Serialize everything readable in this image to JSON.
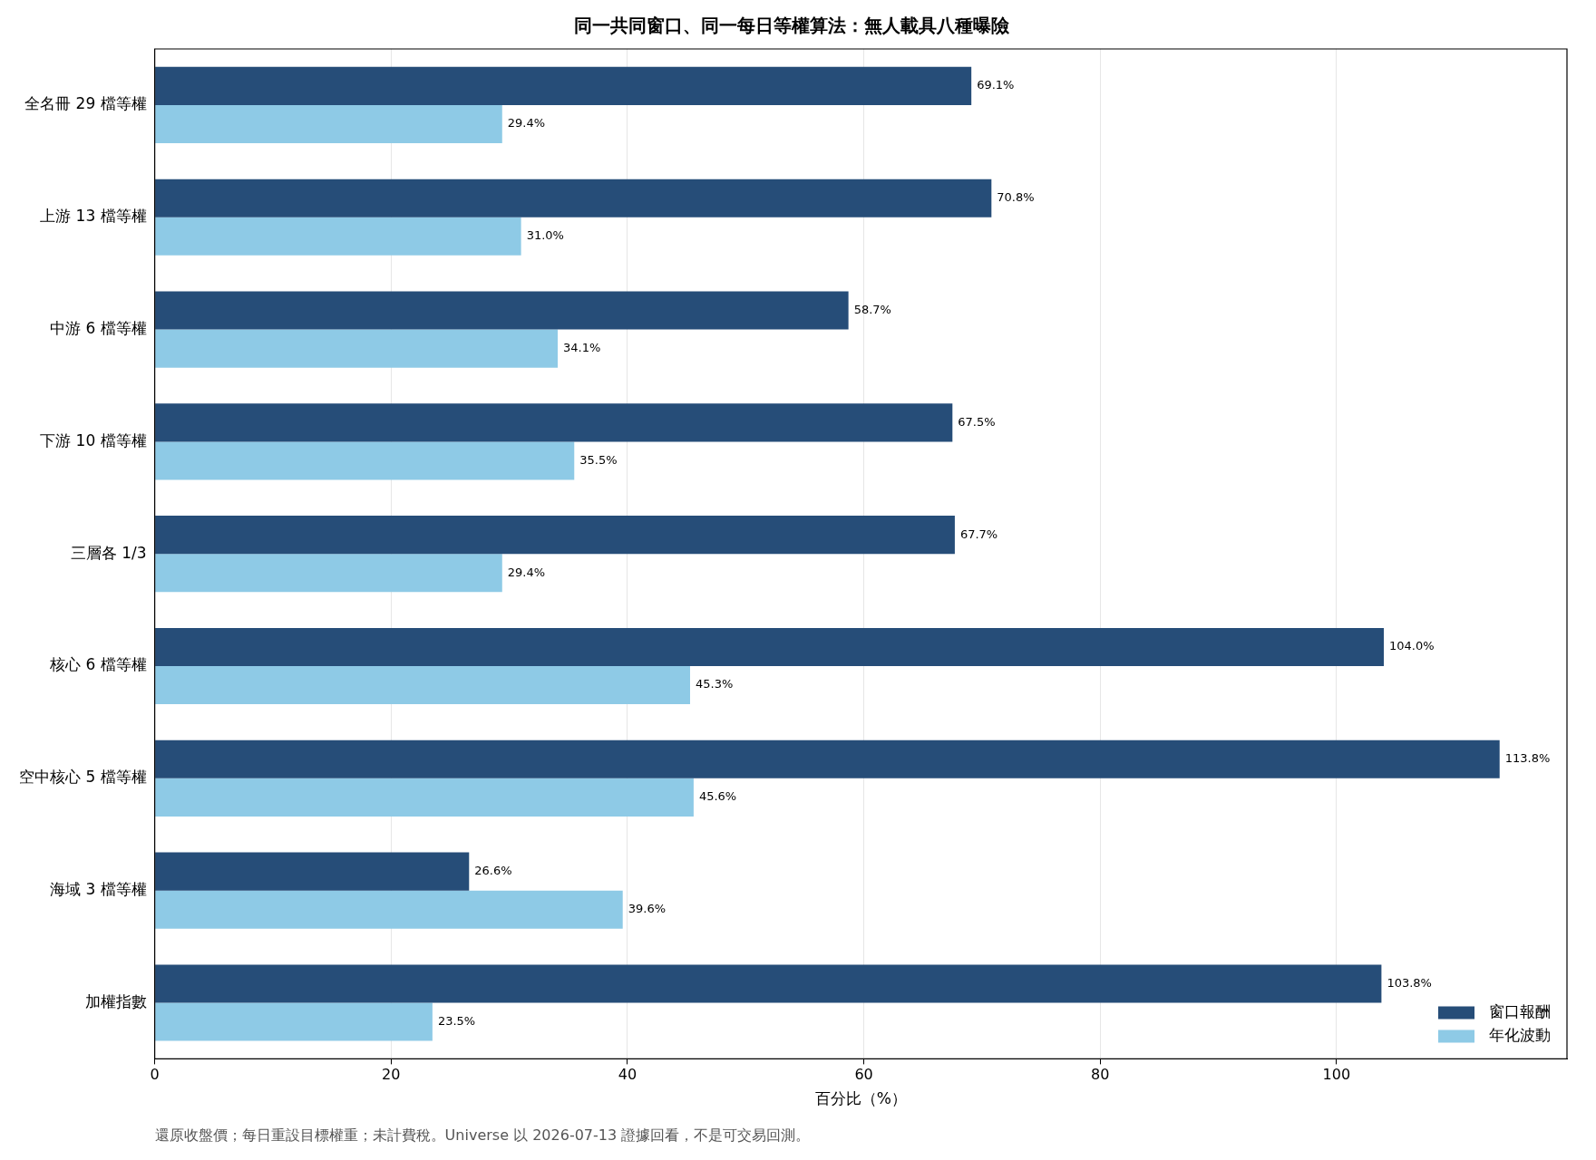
{
  "chart_data": {
    "type": "bar",
    "orientation": "horizontal",
    "title": "同一共同窗口、同一每日等權算法：無人載具八種曝險",
    "xlabel": "百分比（%）",
    "categories": [
      "全名冊 29 檔等權",
      "上游 13 檔等權",
      "中游 6 檔等權",
      "下游 10 檔等權",
      "三層各 1/3",
      "核心 6 檔等權",
      "空中核心 5 檔等權",
      "海域 3 檔等權",
      "加權指數"
    ],
    "series": [
      {
        "name": "窗口報酬",
        "color": "#264d78",
        "values": [
          69.1,
          70.8,
          58.7,
          67.5,
          67.7,
          104.0,
          113.8,
          26.6,
          103.8
        ],
        "value_labels": [
          "69.1%",
          "70.8%",
          "58.7%",
          "67.5%",
          "67.7%",
          "104.0%",
          "113.8%",
          "26.6%",
          "103.8%"
        ]
      },
      {
        "name": "年化波動",
        "color": "#8ecae6",
        "values": [
          29.4,
          31.0,
          34.1,
          35.5,
          29.4,
          45.3,
          45.6,
          39.6,
          23.5
        ],
        "value_labels": [
          "29.4%",
          "31.0%",
          "34.1%",
          "35.5%",
          "29.4%",
          "45.3%",
          "45.6%",
          "39.6%",
          "23.5%"
        ]
      }
    ],
    "xlim": [
      0,
      119.5
    ],
    "xticks": [
      0,
      20,
      40,
      60,
      80,
      100
    ],
    "grid": "x",
    "legend": "bottom right",
    "annotations": [
      "還原收盤價；每日重設目標權重；未計費稅。Universe 以 2026-07-13 證據回看，不是可交易回測。"
    ]
  }
}
